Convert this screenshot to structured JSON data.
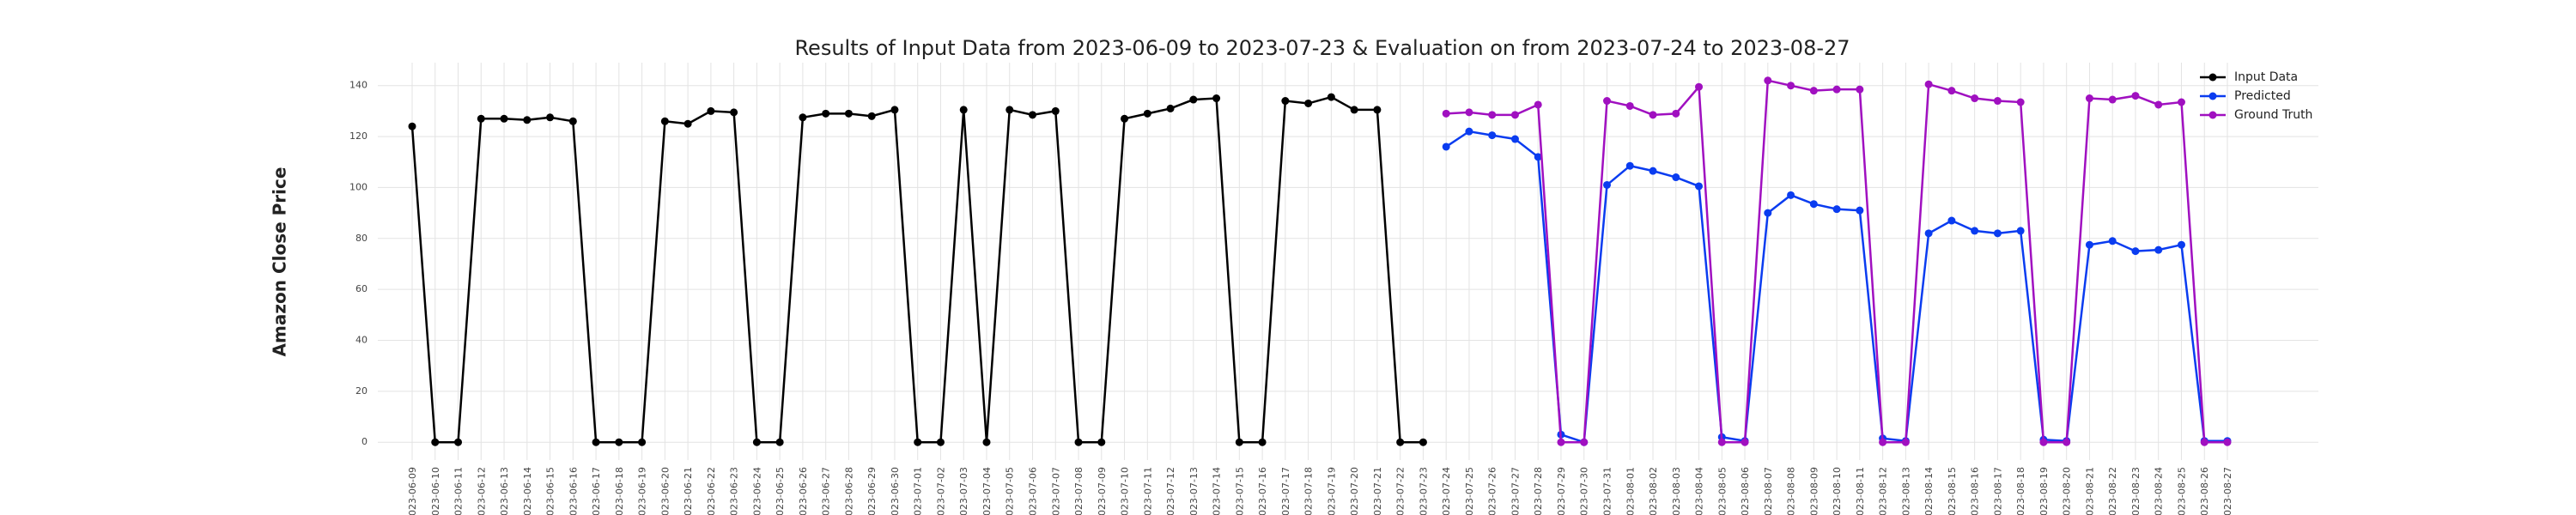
{
  "chart_data": {
    "type": "line",
    "title": "Results of Input Data from 2023-06-09 to 2023-07-23 & Evaluation on from 2023-07-24 to 2023-08-27",
    "y_label": "Amazon Close Price",
    "categories": [
      "2023-06-09",
      "2023-06-10",
      "2023-06-11",
      "2023-06-12",
      "2023-06-13",
      "2023-06-14",
      "2023-06-15",
      "2023-06-16",
      "2023-06-17",
      "2023-06-18",
      "2023-06-19",
      "2023-06-20",
      "2023-06-21",
      "2023-06-22",
      "2023-06-23",
      "2023-06-24",
      "2023-06-25",
      "2023-06-26",
      "2023-06-27",
      "2023-06-28",
      "2023-06-29",
      "2023-06-30",
      "2023-07-01",
      "2023-07-02",
      "2023-07-03",
      "2023-07-04",
      "2023-07-05",
      "2023-07-06",
      "2023-07-07",
      "2023-07-08",
      "2023-07-09",
      "2023-07-10",
      "2023-07-11",
      "2023-07-12",
      "2023-07-13",
      "2023-07-14",
      "2023-07-15",
      "2023-07-16",
      "2023-07-17",
      "2023-07-18",
      "2023-07-19",
      "2023-07-20",
      "2023-07-21",
      "2023-07-22",
      "2023-07-23",
      "2023-07-24",
      "2023-07-25",
      "2023-07-26",
      "2023-07-27",
      "2023-07-28",
      "2023-07-29",
      "2023-07-30",
      "2023-07-31",
      "2023-08-01",
      "2023-08-02",
      "2023-08-03",
      "2023-08-04",
      "2023-08-05",
      "2023-08-06",
      "2023-08-07",
      "2023-08-08",
      "2023-08-09",
      "2023-08-10",
      "2023-08-11",
      "2023-08-12",
      "2023-08-13",
      "2023-08-14",
      "2023-08-15",
      "2023-08-16",
      "2023-08-17",
      "2023-08-18",
      "2023-08-19",
      "2023-08-20",
      "2023-08-21",
      "2023-08-22",
      "2023-08-23",
      "2023-08-24",
      "2023-08-25",
      "2023-08-26",
      "2023-08-27"
    ],
    "series": [
      {
        "name": "Input Data",
        "color": "#000000",
        "values": [
          124,
          0,
          0,
          127,
          127,
          126.5,
          127.5,
          126,
          0,
          0,
          0,
          126,
          125,
          130,
          129.5,
          0,
          0,
          127.5,
          129,
          129,
          128,
          130.5,
          0,
          0,
          130.5,
          0,
          130.5,
          128.5,
          130,
          0,
          0,
          127,
          129,
          131,
          134.5,
          135,
          0,
          0,
          134,
          133,
          135.5,
          130.5,
          130.5,
          0,
          0,
          null,
          null,
          null,
          null,
          null,
          null,
          null,
          null,
          null,
          null,
          null,
          null,
          null,
          null,
          null,
          null,
          null,
          null,
          null,
          null,
          null,
          null,
          null,
          null,
          null,
          null,
          null,
          null,
          null,
          null,
          null,
          null,
          null,
          null,
          null
        ]
      },
      {
        "name": "Predicted",
        "color": "#0a3cf0",
        "values": [
          null,
          null,
          null,
          null,
          null,
          null,
          null,
          null,
          null,
          null,
          null,
          null,
          null,
          null,
          null,
          null,
          null,
          null,
          null,
          null,
          null,
          null,
          null,
          null,
          null,
          null,
          null,
          null,
          null,
          null,
          null,
          null,
          null,
          null,
          null,
          null,
          null,
          null,
          null,
          null,
          null,
          null,
          null,
          null,
          null,
          116,
          122,
          120.5,
          119,
          112,
          3,
          0,
          101,
          108.5,
          106.5,
          104,
          100.5,
          2,
          0.5,
          90,
          97,
          93.5,
          91.5,
          91,
          1.5,
          0.5,
          82,
          87,
          83,
          82,
          83,
          1,
          0.5,
          77.5,
          79,
          75,
          75.5,
          77.5,
          0.5,
          0.5
        ]
      },
      {
        "name": "Ground Truth",
        "color": "#a010c0",
        "values": [
          null,
          null,
          null,
          null,
          null,
          null,
          null,
          null,
          null,
          null,
          null,
          null,
          null,
          null,
          null,
          null,
          null,
          null,
          null,
          null,
          null,
          null,
          null,
          null,
          null,
          null,
          null,
          null,
          null,
          null,
          null,
          null,
          null,
          null,
          null,
          null,
          null,
          null,
          null,
          null,
          null,
          null,
          null,
          null,
          null,
          129,
          129.5,
          128.5,
          128.5,
          132.5,
          0,
          0,
          134,
          132,
          128.5,
          129,
          139.5,
          0,
          0,
          142,
          140,
          138,
          138.5,
          138.5,
          0,
          0,
          140.5,
          138,
          135,
          134,
          133.5,
          0,
          0,
          135,
          134.5,
          136,
          132.5,
          133.5,
          0,
          0
        ]
      }
    ],
    "ylim": [
      -7,
      149
    ],
    "yticks": [
      0,
      20,
      40,
      60,
      80,
      100,
      120,
      140
    ],
    "grid": true,
    "legend": "upper right"
  }
}
